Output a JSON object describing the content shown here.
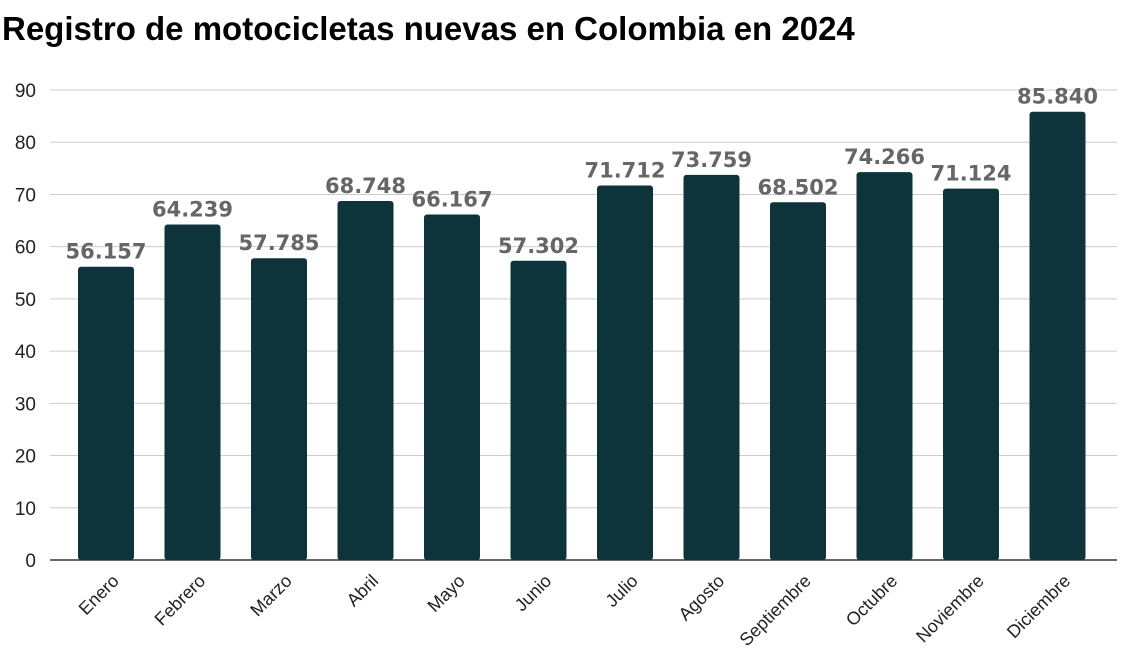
{
  "chart_data": {
    "type": "bar",
    "title": "Registro de motocicletas nuevas en Colombia en 2024",
    "xlabel": "",
    "ylabel": "",
    "categories": [
      "Enero",
      "Febrero",
      "Marzo",
      "Abril",
      "Mayo",
      "Junio",
      "Julio",
      "Agosto",
      "Septiembre",
      "Octubre",
      "Noviembre",
      "Diciembre"
    ],
    "values": [
      56.157,
      64.239,
      57.785,
      68.748,
      66.167,
      57.302,
      71.712,
      73.759,
      68.502,
      74.266,
      71.124,
      85.84
    ],
    "data_labels": [
      "56.157",
      "64.239",
      "57.785",
      "68.748",
      "66.167",
      "57.302",
      "71.712",
      "73.759",
      "68.502",
      "74.266",
      "71.124",
      "85.840"
    ],
    "ylim": [
      0,
      90
    ],
    "yticks": [
      0,
      10,
      20,
      30,
      40,
      50,
      60,
      70,
      80,
      90
    ],
    "grid": true,
    "colors": {
      "bar": "#0d343b",
      "label": "#666666",
      "grid": "#cccccc"
    }
  }
}
